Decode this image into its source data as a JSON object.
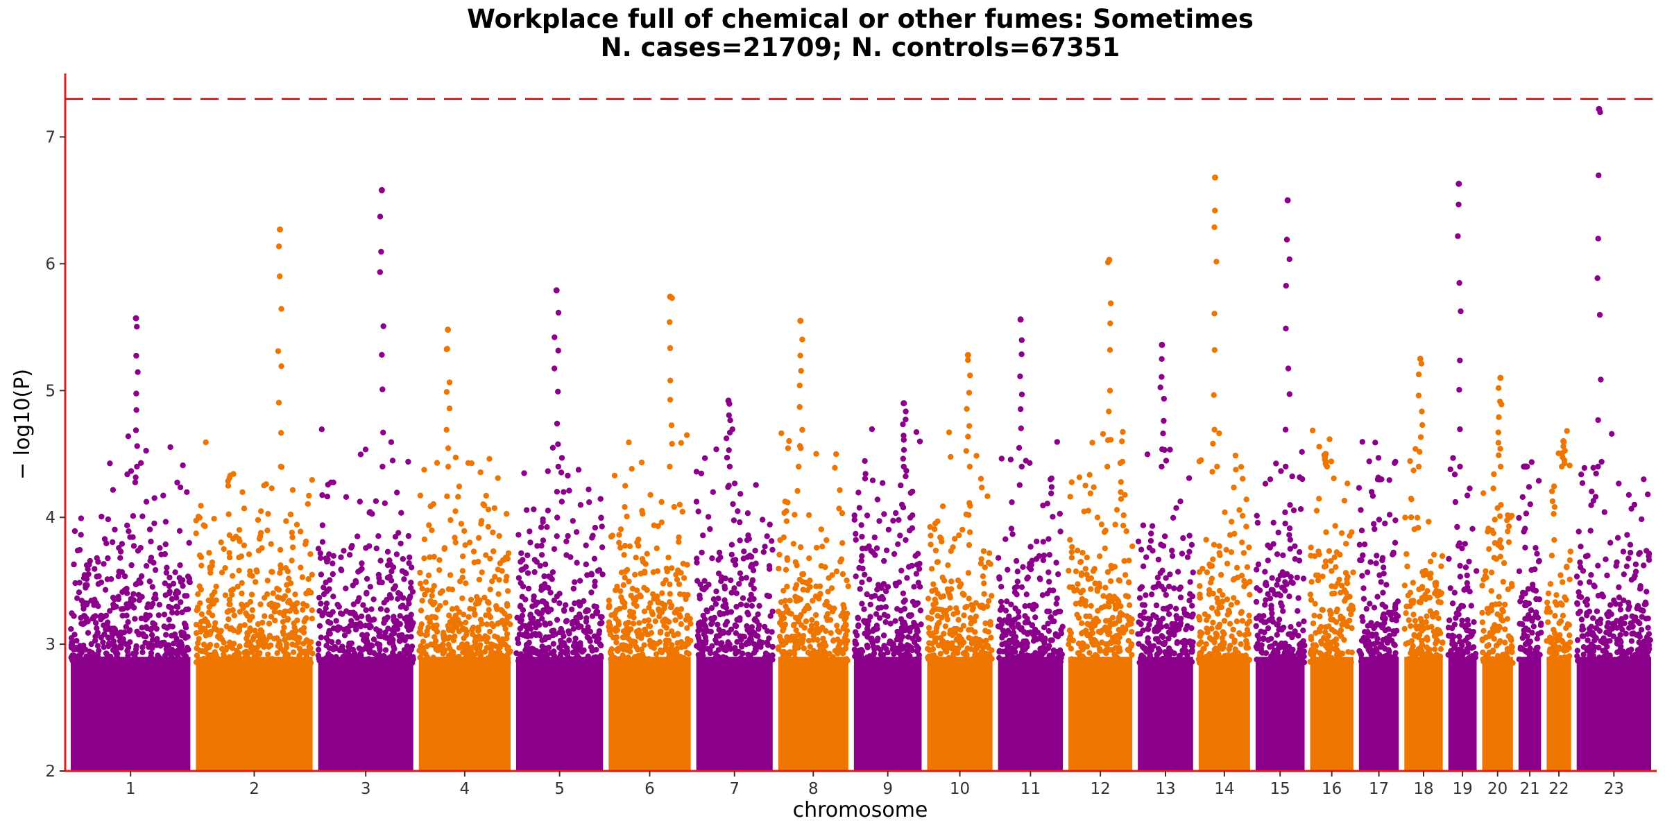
{
  "chart_data": {
    "type": "scatter",
    "title": "Workplace full of chemical or other fumes: Sometimes",
    "subtitle": "N. cases=21709; N. controls=67351",
    "xlabel": "chromosome",
    "ylabel": "− log10(P)",
    "ylim": [
      2,
      7.5
    ],
    "yticks": [
      2,
      3,
      4,
      5,
      6,
      7
    ],
    "threshold": 7.3,
    "grid": false,
    "colors": {
      "odd": "#8B008B",
      "even": "#EE7600",
      "threshold": "#E41A1C",
      "axis": "#E41A1C"
    },
    "chromosomes": [
      {
        "label": "1",
        "length": 249,
        "peak": 5.57
      },
      {
        "label": "2",
        "length": 243,
        "peak": 6.27
      },
      {
        "label": "3",
        "length": 198,
        "peak": 6.58
      },
      {
        "label": "4",
        "length": 191,
        "peak": 5.48
      },
      {
        "label": "5",
        "length": 181,
        "peak": 5.79
      },
      {
        "label": "6",
        "length": 171,
        "peak": 5.74
      },
      {
        "label": "7",
        "length": 159,
        "peak": 4.92
      },
      {
        "label": "8",
        "length": 146,
        "peak": 5.55
      },
      {
        "label": "9",
        "length": 141,
        "peak": 4.9
      },
      {
        "label": "10",
        "length": 136,
        "peak": 5.28
      },
      {
        "label": "11",
        "length": 135,
        "peak": 5.56
      },
      {
        "label": "12",
        "length": 133,
        "peak": 6.03
      },
      {
        "label": "13",
        "length": 115,
        "peak": 5.36
      },
      {
        "label": "14",
        "length": 107,
        "peak": 6.68
      },
      {
        "label": "15",
        "length": 102,
        "peak": 6.5
      },
      {
        "label": "16",
        "length": 90,
        "peak": 4.5
      },
      {
        "label": "17",
        "length": 83,
        "peak": 4.3
      },
      {
        "label": "18",
        "length": 80,
        "peak": 5.25
      },
      {
        "label": "19",
        "length": 59,
        "peak": 6.63
      },
      {
        "label": "20",
        "length": 64,
        "peak": 5.1
      },
      {
        "label": "21",
        "length": 47,
        "peak": 4.4
      },
      {
        "label": "22",
        "length": 51,
        "peak": 4.6
      },
      {
        "label": "23",
        "length": 155,
        "peak": 7.22
      }
    ]
  }
}
